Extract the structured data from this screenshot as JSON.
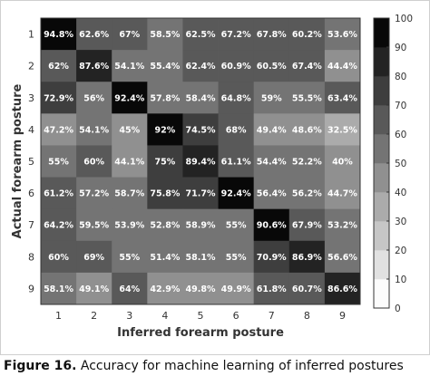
{
  "chart_data": {
    "type": "heatmap",
    "title": "",
    "xlabel": "Inferred forearm posture",
    "ylabel": "Actual forearm posture",
    "x_categories": [
      "1",
      "2",
      "3",
      "4",
      "5",
      "6",
      "7",
      "8",
      "9"
    ],
    "y_categories": [
      "1",
      "2",
      "3",
      "4",
      "5",
      "6",
      "7",
      "8",
      "9"
    ],
    "value_suffix": "%",
    "values": [
      [
        94.8,
        62.6,
        67,
        58.5,
        62.5,
        67.2,
        67.8,
        60.2,
        53.6
      ],
      [
        62,
        87.6,
        54.1,
        55.4,
        62.4,
        60.9,
        60.5,
        67.4,
        44.4
      ],
      [
        72.9,
        56,
        92.4,
        57.8,
        58.4,
        64.8,
        59,
        55.5,
        63.4
      ],
      [
        47.2,
        54.1,
        45,
        92,
        74.5,
        68,
        49.4,
        48.6,
        32.5
      ],
      [
        55,
        60,
        44.1,
        75,
        89.4,
        61.1,
        54.4,
        52.2,
        40
      ],
      [
        61.2,
        57.2,
        58.7,
        75.8,
        71.7,
        92.4,
        56.4,
        56.2,
        44.7
      ],
      [
        64.2,
        59.5,
        53.9,
        52.8,
        58.9,
        55,
        90.6,
        67.9,
        53.2
      ],
      [
        60,
        69,
        55,
        51.4,
        58.1,
        55,
        70.9,
        86.9,
        56.6
      ],
      [
        58.1,
        49.1,
        64,
        42.9,
        49.8,
        49.9,
        61.8,
        60.7,
        86.6
      ]
    ],
    "colorbar": {
      "min": 0,
      "max": 100,
      "ticks": [
        "0",
        "10",
        "20",
        "30",
        "40",
        "50",
        "60",
        "70",
        "80",
        "90",
        "100"
      ],
      "scheme": "gray-reversed"
    }
  },
  "caption": {
    "bold": "Figure 16.",
    "text": "  Accuracy for machine learning of inferred postures"
  }
}
